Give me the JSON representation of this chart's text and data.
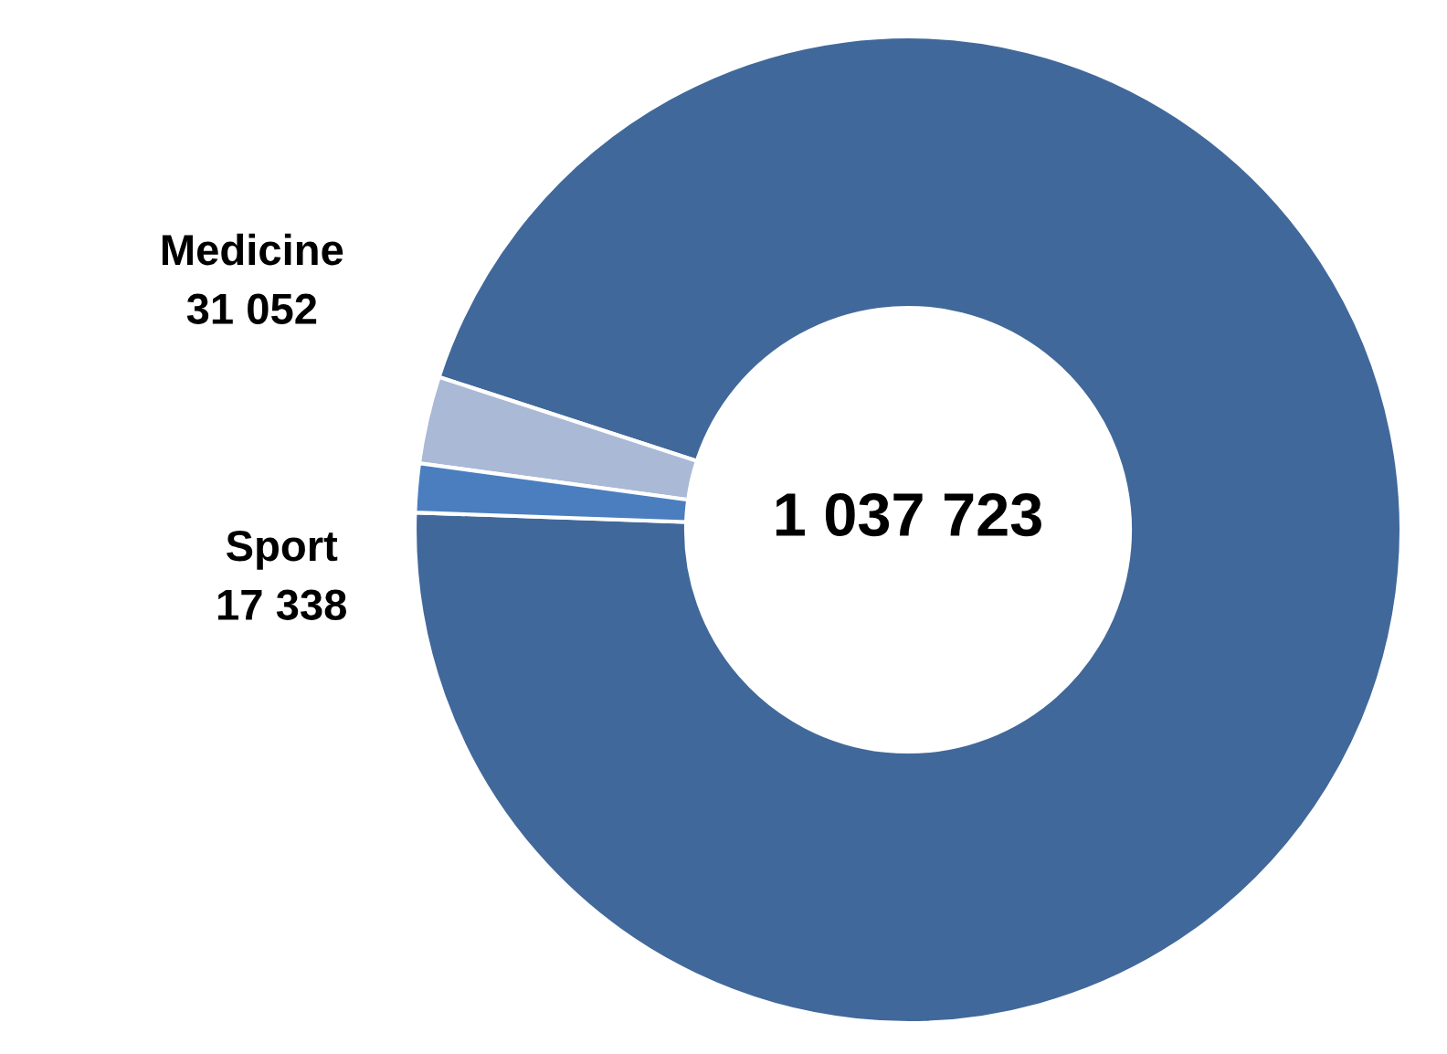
{
  "chart_data": {
    "type": "donut",
    "categories": [
      null,
      "Medicine",
      "Sport"
    ],
    "values": [
      1037723,
      31052,
      17338
    ],
    "value_labels": [
      "1 037 723",
      "31 052",
      "17 338"
    ],
    "colors": [
      "#41689a",
      "#a9b9d6",
      "#4a7ebf"
    ],
    "legend": false
  }
}
